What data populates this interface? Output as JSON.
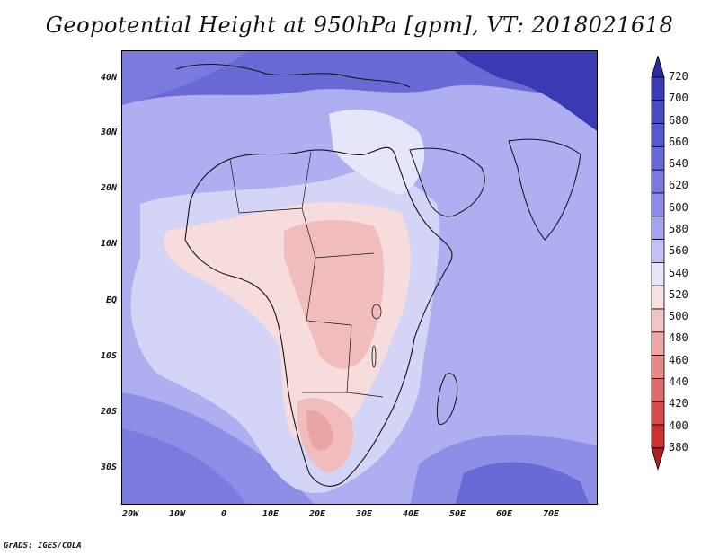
{
  "title": "Geopotential Height at 950hPa [gpm], VT: 2018021618",
  "footer": "GrADS: IGES/COLA",
  "lat_labels": [
    "40N",
    "30N",
    "20N",
    "10N",
    "EQ",
    "10S",
    "20S",
    "30S"
  ],
  "lon_labels": [
    "20W",
    "10W",
    "0",
    "10E",
    "20E",
    "30E",
    "40E",
    "50E",
    "60E",
    "70E"
  ],
  "colorbar": {
    "levels": [
      "720",
      "700",
      "680",
      "660",
      "640",
      "620",
      "600",
      "580",
      "560",
      "540",
      "520",
      "500",
      "480",
      "460",
      "440",
      "420",
      "400",
      "380"
    ],
    "colors": [
      "#2c2ca0",
      "#3a3ab5",
      "#4a4ac2",
      "#5959cc",
      "#6a6ad6",
      "#7b7bdf",
      "#8e8ee6",
      "#a3a3ee",
      "#c2c2f4",
      "#e6e6fa",
      "#f7e1e1",
      "#f3c4c4",
      "#eda6a6",
      "#e68888",
      "#df6a6a",
      "#d64c4c",
      "#c83232",
      "#b01e1e"
    ]
  },
  "field_colors": {
    "deep_blue": "#5454c6",
    "mid_blue": "#8282e0",
    "light_blue": "#aeaef0",
    "pale_blue": "#d4d4f6",
    "white": "#f6f6fc",
    "pale_pink": "#f6dcdc",
    "pink": "#f0bcbc",
    "rose": "#e9a4a4"
  }
}
